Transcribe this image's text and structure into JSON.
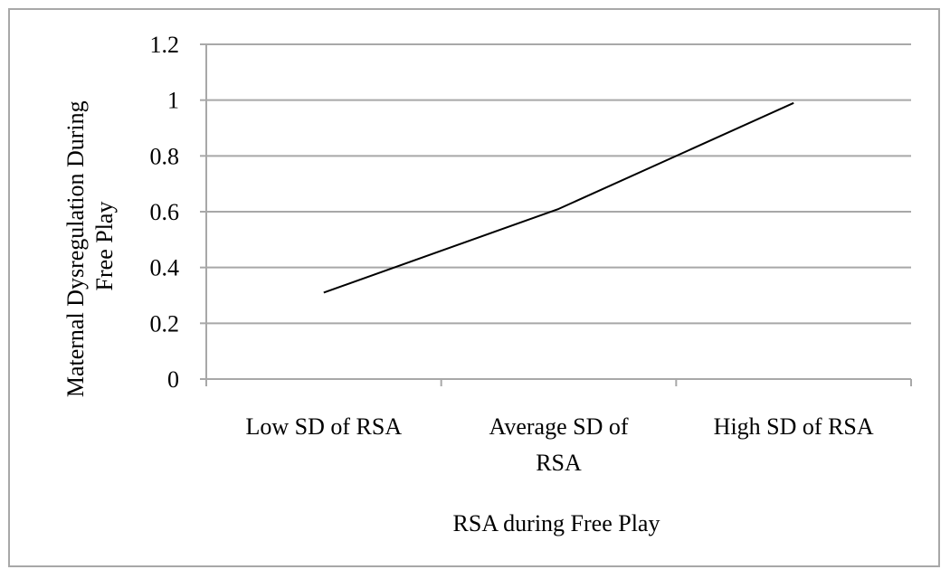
{
  "chart_data": {
    "type": "line",
    "categories": [
      "Low SD of RSA",
      "Average SD of RSA",
      "High SD of RSA"
    ],
    "category_label_lines": [
      [
        "Low SD of RSA"
      ],
      [
        "Average SD of",
        "RSA"
      ],
      [
        "High SD of RSA"
      ]
    ],
    "series": [
      {
        "values": [
          0.31,
          0.61,
          0.99
        ],
        "color": "#000000"
      }
    ],
    "xlabel": "RSA during Free Play",
    "ylabel_lines": [
      "Maternal Dysregulation During",
      "Free Play"
    ],
    "ylim": [
      0,
      1.2
    ],
    "yticks": [
      "0",
      "0.2",
      "0.4",
      "0.6",
      "0.8",
      "1",
      "1.2"
    ],
    "grid": true,
    "legend": "none"
  },
  "colors": {
    "gridline": "#a8a8a8",
    "axis": "#a8a8a8",
    "border": "#a8a8a8",
    "series": "#000000"
  }
}
